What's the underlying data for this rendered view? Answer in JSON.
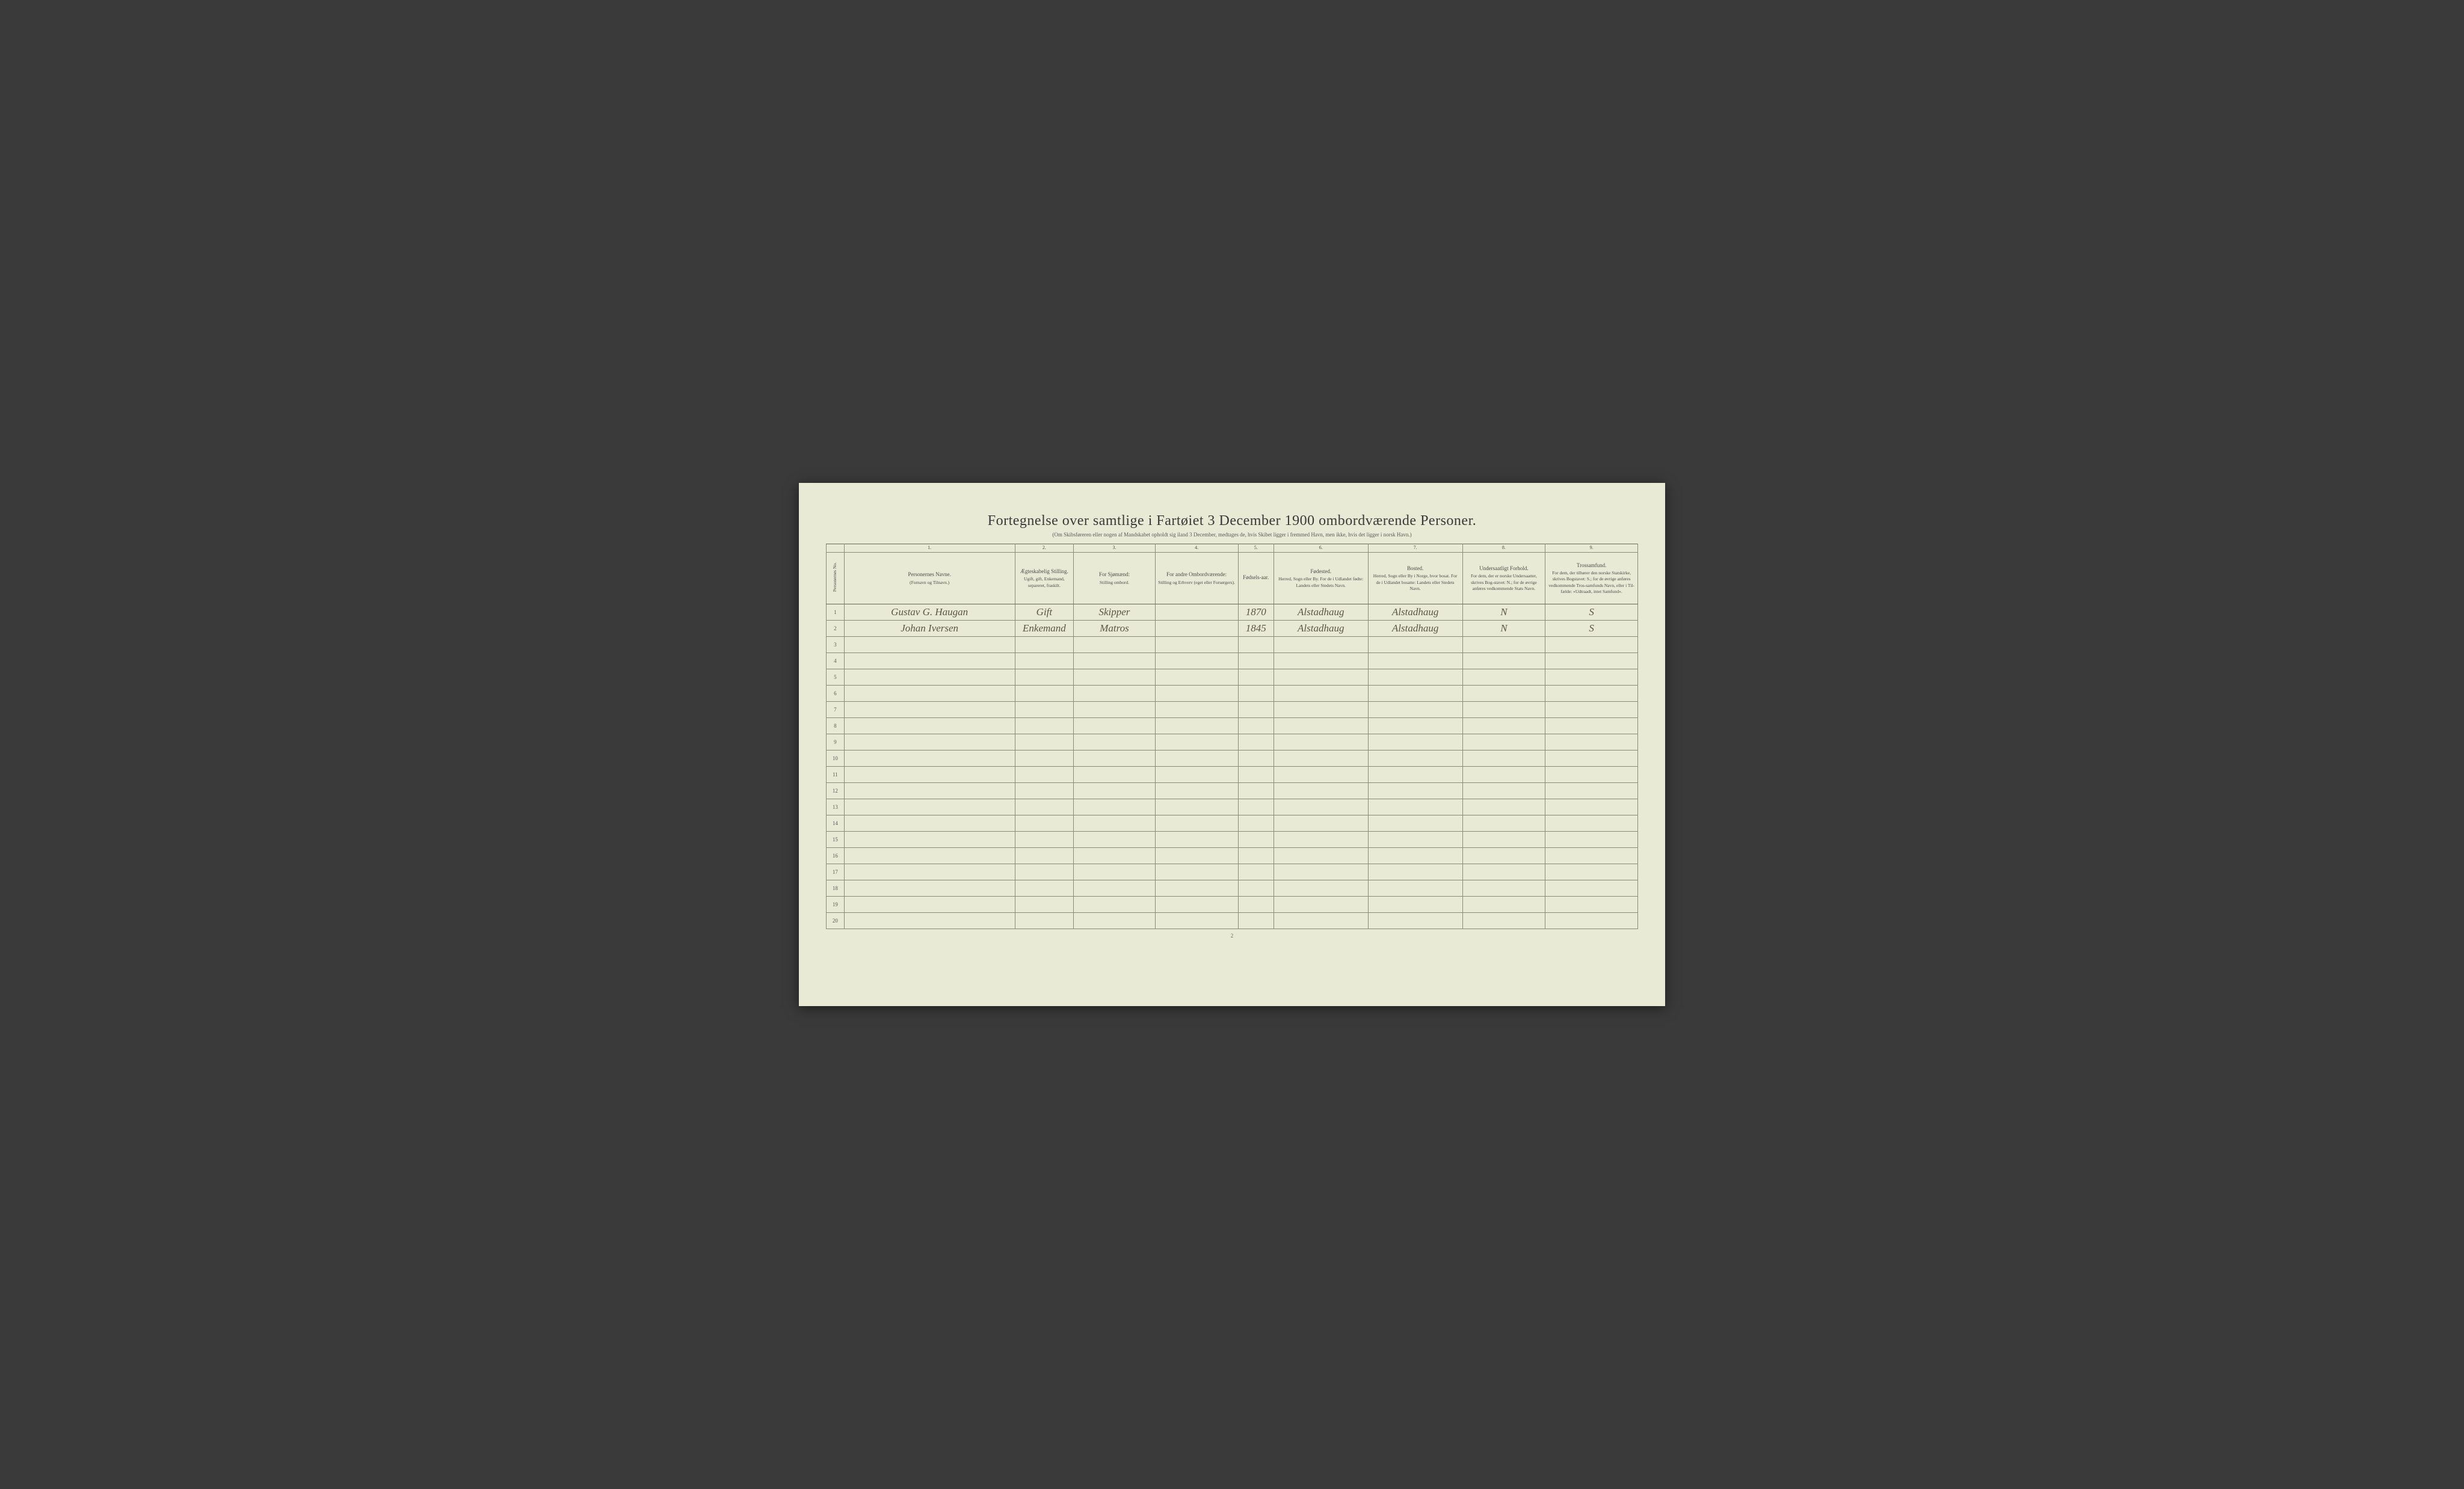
{
  "page": {
    "title": "Fortegnelse over samtlige i Fartøiet 3 December 1900 ombordværende Personer.",
    "subtitle": "(Om Skibsføreren eller nogen af Mandskabet opholdt sig iland 3 December, medtages de, hvis Skibet ligger i fremmed Havn, men ikke, hvis det ligger i norsk Havn.)",
    "footer_pagenum": "2",
    "background_color": "#e8ead5",
    "border_color": "#8a8a7a"
  },
  "columns": {
    "rownum_label": "Personernes No.",
    "col1_num": "1.",
    "col1_main": "Personernes Navne.",
    "col1_sub": "(Fornavn og Tilnavn.)",
    "col2_num": "2.",
    "col2_main": "Ægteskabelig Stilling.",
    "col2_sub": "Ugift, gift, Enkemand, separeret, fraskilt.",
    "col3_num": "3.",
    "col3_main": "For Sjømænd:",
    "col3_sub": "Stilling ombord.",
    "col4_num": "4.",
    "col4_main": "For andre Ombordværende:",
    "col4_sub": "Stilling og Erhverv (eget eller Forsørgers).",
    "col5_num": "5.",
    "col5_main": "Fødsels-aar.",
    "col6_num": "6.",
    "col6_main": "Fødested.",
    "col6_sub": "Herred, Sogn eller By. For de i Udlandet fødte: Landets eller Stedets Navn.",
    "col7_num": "7.",
    "col7_main": "Bosted.",
    "col7_sub": "Herred, Sogn eller By i Norge, hvor bosat. For de i Udlandet bosatte: Landets eller Stedets Navn.",
    "col8_num": "8.",
    "col8_main": "Undersaatligt Forhold.",
    "col8_sub": "For dem, der er norske Undersaatter, skrives Bog-stavet: N.; for de øvrige anføres vedkommende Stats Navn.",
    "col9_num": "9.",
    "col9_main": "Trossamfund.",
    "col9_sub": "For dem, der tilhører den norske Statskirke, skrives Bogstavet: S.; for de øvrige anføres vedkommende Tros-samfunds Navn, eller i Til-fælde: «Udtraadt, intet Samfund»."
  },
  "rows": [
    {
      "n": "1",
      "name": "Gustav G. Haugan",
      "marital": "Gift",
      "position": "Skipper",
      "others": "",
      "year": "1870",
      "birthplace": "Alstadhaug",
      "residence": "Alstadhaug",
      "nationality": "N",
      "religion": "S"
    },
    {
      "n": "2",
      "name": "Johan Iversen",
      "marital": "Enkemand",
      "position": "Matros",
      "others": "",
      "year": "1845",
      "birthplace": "Alstadhaug",
      "residence": "Alstadhaug",
      "nationality": "N",
      "religion": "S"
    },
    {
      "n": "3",
      "name": "",
      "marital": "",
      "position": "",
      "others": "",
      "year": "",
      "birthplace": "",
      "residence": "",
      "nationality": "",
      "religion": ""
    },
    {
      "n": "4",
      "name": "",
      "marital": "",
      "position": "",
      "others": "",
      "year": "",
      "birthplace": "",
      "residence": "",
      "nationality": "",
      "religion": ""
    },
    {
      "n": "5",
      "name": "",
      "marital": "",
      "position": "",
      "others": "",
      "year": "",
      "birthplace": "",
      "residence": "",
      "nationality": "",
      "religion": ""
    },
    {
      "n": "6",
      "name": "",
      "marital": "",
      "position": "",
      "others": "",
      "year": "",
      "birthplace": "",
      "residence": "",
      "nationality": "",
      "religion": ""
    },
    {
      "n": "7",
      "name": "",
      "marital": "",
      "position": "",
      "others": "",
      "year": "",
      "birthplace": "",
      "residence": "",
      "nationality": "",
      "religion": ""
    },
    {
      "n": "8",
      "name": "",
      "marital": "",
      "position": "",
      "others": "",
      "year": "",
      "birthplace": "",
      "residence": "",
      "nationality": "",
      "religion": ""
    },
    {
      "n": "9",
      "name": "",
      "marital": "",
      "position": "",
      "others": "",
      "year": "",
      "birthplace": "",
      "residence": "",
      "nationality": "",
      "religion": ""
    },
    {
      "n": "10",
      "name": "",
      "marital": "",
      "position": "",
      "others": "",
      "year": "",
      "birthplace": "",
      "residence": "",
      "nationality": "",
      "religion": ""
    },
    {
      "n": "11",
      "name": "",
      "marital": "",
      "position": "",
      "others": "",
      "year": "",
      "birthplace": "",
      "residence": "",
      "nationality": "",
      "religion": ""
    },
    {
      "n": "12",
      "name": "",
      "marital": "",
      "position": "",
      "others": "",
      "year": "",
      "birthplace": "",
      "residence": "",
      "nationality": "",
      "religion": ""
    },
    {
      "n": "13",
      "name": "",
      "marital": "",
      "position": "",
      "others": "",
      "year": "",
      "birthplace": "",
      "residence": "",
      "nationality": "",
      "religion": ""
    },
    {
      "n": "14",
      "name": "",
      "marital": "",
      "position": "",
      "others": "",
      "year": "",
      "birthplace": "",
      "residence": "",
      "nationality": "",
      "religion": ""
    },
    {
      "n": "15",
      "name": "",
      "marital": "",
      "position": "",
      "others": "",
      "year": "",
      "birthplace": "",
      "residence": "",
      "nationality": "",
      "religion": ""
    },
    {
      "n": "16",
      "name": "",
      "marital": "",
      "position": "",
      "others": "",
      "year": "",
      "birthplace": "",
      "residence": "",
      "nationality": "",
      "religion": ""
    },
    {
      "n": "17",
      "name": "",
      "marital": "",
      "position": "",
      "others": "",
      "year": "",
      "birthplace": "",
      "residence": "",
      "nationality": "",
      "religion": ""
    },
    {
      "n": "18",
      "name": "",
      "marital": "",
      "position": "",
      "others": "",
      "year": "",
      "birthplace": "",
      "residence": "",
      "nationality": "",
      "religion": ""
    },
    {
      "n": "19",
      "name": "",
      "marital": "",
      "position": "",
      "others": "",
      "year": "",
      "birthplace": "",
      "residence": "",
      "nationality": "",
      "religion": ""
    },
    {
      "n": "20",
      "name": "",
      "marital": "",
      "position": "",
      "others": "",
      "year": "",
      "birthplace": "",
      "residence": "",
      "nationality": "",
      "religion": ""
    }
  ]
}
